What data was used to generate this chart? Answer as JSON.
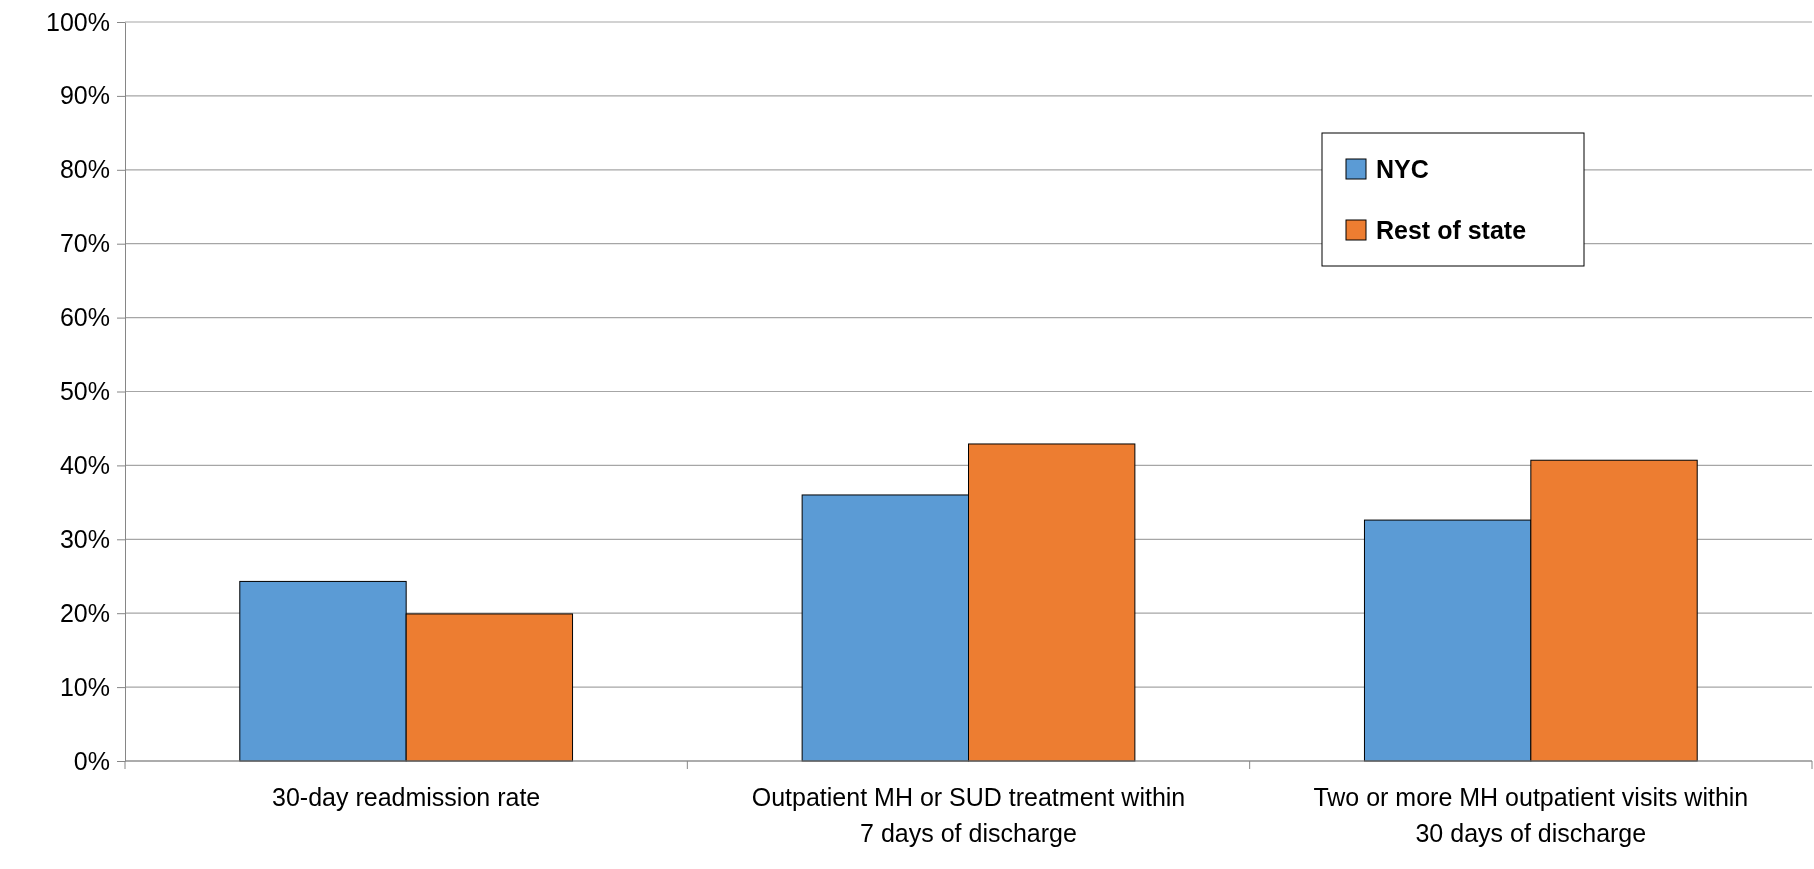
{
  "chart_data": {
    "type": "bar",
    "categories": [
      "30-day readmission rate",
      "Outpatient MH or SUD treatment within 7 days of discharge",
      "Two or more MH outpatient visits within 30 days of discharge"
    ],
    "series": [
      {
        "name": "NYC",
        "color": "#5b9bd5",
        "values": [
          24.3,
          36.0,
          32.6
        ]
      },
      {
        "name": "Rest of state",
        "color": "#ed7d31",
        "values": [
          19.9,
          42.9,
          40.7
        ]
      }
    ],
    "ylim": [
      0,
      100
    ],
    "yticks": [
      {
        "value": 0,
        "label": "0%"
      },
      {
        "value": 10,
        "label": "10%"
      },
      {
        "value": 20,
        "label": "20%"
      },
      {
        "value": 30,
        "label": "30%"
      },
      {
        "value": 40,
        "label": "40%"
      },
      {
        "value": 50,
        "label": "50%"
      },
      {
        "value": 60,
        "label": "60%"
      },
      {
        "value": 70,
        "label": "70%"
      },
      {
        "value": 80,
        "label": "80%"
      },
      {
        "value": 90,
        "label": "90%"
      },
      {
        "value": 100,
        "label": "100%"
      }
    ],
    "grid": "y",
    "legend": "top right"
  }
}
